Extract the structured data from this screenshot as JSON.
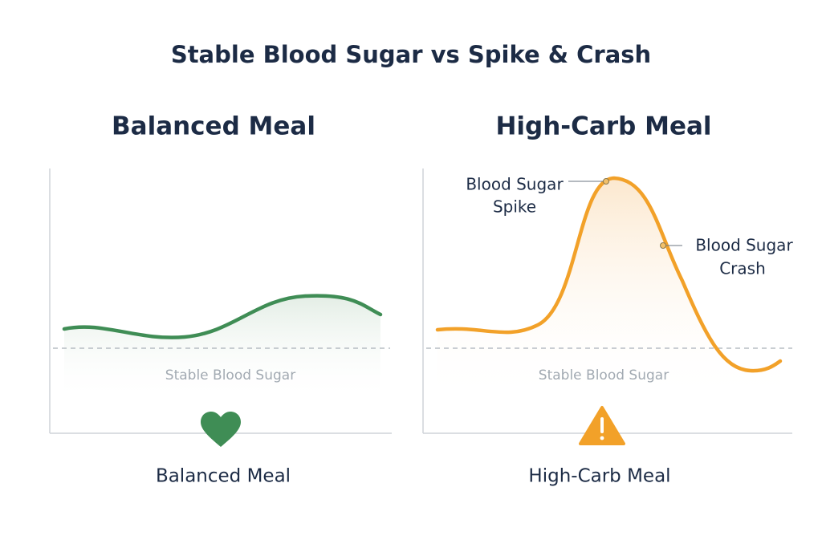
{
  "title": "Stable Blood Sugar vs Spike & Crash",
  "panels": [
    {
      "heading": "Balanced Meal",
      "baseline_label": "Stable Blood Sugar",
      "caption": "Balanced Meal"
    },
    {
      "heading": "High-Carb Meal",
      "baseline_label": "Stable Blood Sugar",
      "caption": "High-Carb Meal",
      "annotations": [
        {
          "lines": [
            "Blood Sugar",
            "Spike"
          ]
        },
        {
          "lines": [
            "Blood Sugar",
            "Crash"
          ]
        }
      ]
    }
  ]
}
